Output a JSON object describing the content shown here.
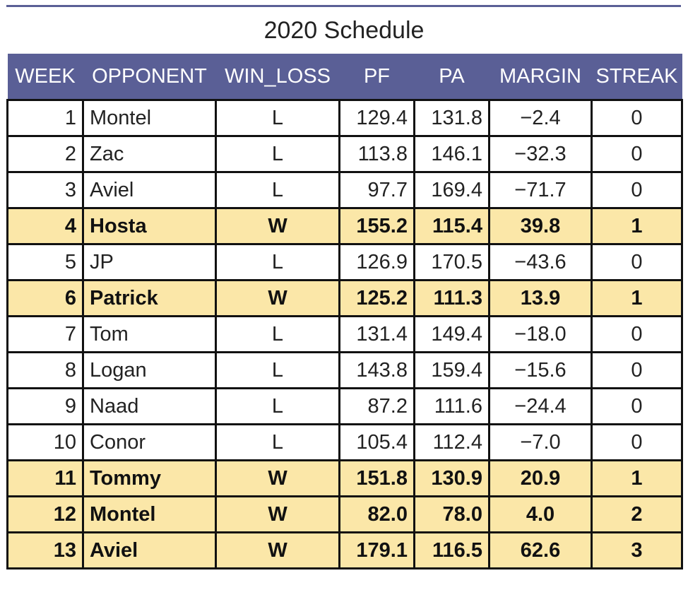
{
  "title": "2020 Schedule",
  "colors": {
    "header_bg": "#5a5f96",
    "win_row_bg": "#fbe7a8"
  },
  "columns": [
    "WEEK",
    "OPPONENT",
    "WIN_LOSS",
    "PF",
    "PA",
    "MARGIN",
    "STREAK"
  ],
  "rows": [
    {
      "week": "1",
      "opponent": "Montel",
      "win_loss": "L",
      "pf": "129.4",
      "pa": "131.8",
      "margin": "−2.4",
      "streak": "0",
      "highlight": false
    },
    {
      "week": "2",
      "opponent": "Zac",
      "win_loss": "L",
      "pf": "113.8",
      "pa": "146.1",
      "margin": "−32.3",
      "streak": "0",
      "highlight": false
    },
    {
      "week": "3",
      "opponent": "Aviel",
      "win_loss": "L",
      "pf": "97.7",
      "pa": "169.4",
      "margin": "−71.7",
      "streak": "0",
      "highlight": false
    },
    {
      "week": "4",
      "opponent": "Hosta",
      "win_loss": "W",
      "pf": "155.2",
      "pa": "115.4",
      "margin": "39.8",
      "streak": "1",
      "highlight": true
    },
    {
      "week": "5",
      "opponent": "JP",
      "win_loss": "L",
      "pf": "126.9",
      "pa": "170.5",
      "margin": "−43.6",
      "streak": "0",
      "highlight": false
    },
    {
      "week": "6",
      "opponent": "Patrick",
      "win_loss": "W",
      "pf": "125.2",
      "pa": "111.3",
      "margin": "13.9",
      "streak": "1",
      "highlight": true
    },
    {
      "week": "7",
      "opponent": "Tom",
      "win_loss": "L",
      "pf": "131.4",
      "pa": "149.4",
      "margin": "−18.0",
      "streak": "0",
      "highlight": false
    },
    {
      "week": "8",
      "opponent": "Logan",
      "win_loss": "L",
      "pf": "143.8",
      "pa": "159.4",
      "margin": "−15.6",
      "streak": "0",
      "highlight": false
    },
    {
      "week": "9",
      "opponent": "Naad",
      "win_loss": "L",
      "pf": "87.2",
      "pa": "111.6",
      "margin": "−24.4",
      "streak": "0",
      "highlight": false
    },
    {
      "week": "10",
      "opponent": "Conor",
      "win_loss": "L",
      "pf": "105.4",
      "pa": "112.4",
      "margin": "−7.0",
      "streak": "0",
      "highlight": false
    },
    {
      "week": "11",
      "opponent": "Tommy",
      "win_loss": "W",
      "pf": "151.8",
      "pa": "130.9",
      "margin": "20.9",
      "streak": "1",
      "highlight": true
    },
    {
      "week": "12",
      "opponent": "Montel",
      "win_loss": "W",
      "pf": "82.0",
      "pa": "78.0",
      "margin": "4.0",
      "streak": "2",
      "highlight": true
    },
    {
      "week": "13",
      "opponent": "Aviel",
      "win_loss": "W",
      "pf": "179.1",
      "pa": "116.5",
      "margin": "62.6",
      "streak": "3",
      "highlight": true
    }
  ]
}
